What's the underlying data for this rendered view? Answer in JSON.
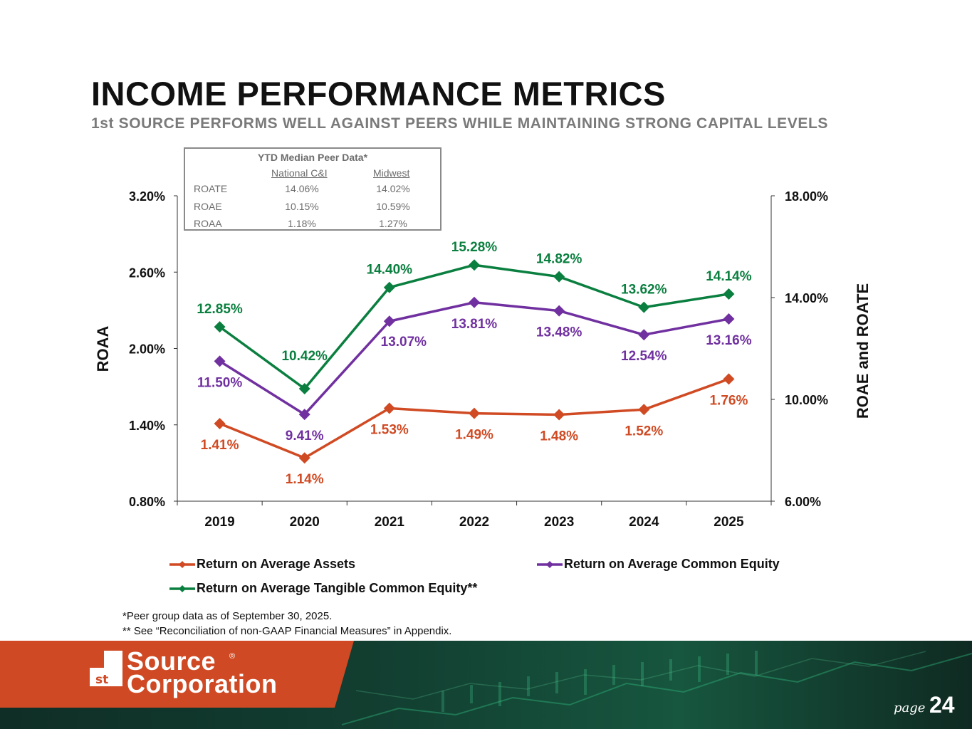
{
  "title": "INCOME PERFORMANCE METRICS",
  "subtitle": "1st SOURCE PERFORMS WELL AGAINST PEERS WHILE MAINTAINING STRONG CAPITAL LEVELS",
  "peer_table": {
    "title": "YTD Median Peer Data*",
    "columns": [
      "National C&I",
      "Midwest"
    ],
    "rows": [
      {
        "label": "ROATE",
        "values": [
          "14.06%",
          "14.02%"
        ]
      },
      {
        "label": "ROAE",
        "values": [
          "10.15%",
          "10.59%"
        ]
      },
      {
        "label": "ROAA",
        "values": [
          "1.18%",
          "1.27%"
        ]
      }
    ]
  },
  "chart_data": {
    "type": "line",
    "categories": [
      "2019",
      "2020",
      "2021",
      "2022",
      "2023",
      "2024",
      "2025"
    ],
    "left_axis": {
      "label": "ROAA",
      "ylim": [
        0.8,
        3.2
      ],
      "ticks": [
        "3.20%",
        "2.60%",
        "2.00%",
        "1.40%",
        "0.80%"
      ],
      "tick_values": [
        3.2,
        2.6,
        2.0,
        1.4,
        0.8
      ]
    },
    "right_axis": {
      "label": "ROAE and ROATE",
      "ylim": [
        6.0,
        18.0
      ],
      "ticks": [
        "18.00%",
        "14.00%",
        "10.00%",
        "6.00%"
      ],
      "tick_values": [
        18.0,
        14.0,
        10.0,
        6.0
      ]
    },
    "series": [
      {
        "name": "Return on Average Assets",
        "axis": "left",
        "color": "#d04a23",
        "values": [
          1.41,
          1.14,
          1.53,
          1.49,
          1.48,
          1.52,
          1.76
        ],
        "labels": [
          "1.41%",
          "1.14%",
          "1.53%",
          "1.49%",
          "1.48%",
          "1.52%",
          "1.76%"
        ]
      },
      {
        "name": "Return on Average Common Equity",
        "axis": "right",
        "color": "#7030a0",
        "values": [
          11.5,
          9.41,
          13.07,
          13.81,
          13.48,
          12.54,
          13.16
        ],
        "labels": [
          "11.50%",
          "9.41%",
          "13.07%",
          "13.81%",
          "13.48%",
          "12.54%",
          "13.16%"
        ]
      },
      {
        "name": "Return on Average Tangible Common Equity**",
        "axis": "right",
        "color": "#0a7f3f",
        "values": [
          12.85,
          10.42,
          14.4,
          15.28,
          14.82,
          13.62,
          14.14
        ],
        "labels": [
          "12.85%",
          "10.42%",
          "14.40%",
          "15.28%",
          "14.82%",
          "13.62%",
          "14.14%"
        ]
      }
    ]
  },
  "footnotes": [
    "*Peer group data as of September 30, 2025.",
    "** See “Reconciliation of non-GAAP Financial Measures” in Appendix."
  ],
  "logo": {
    "mark": "1st",
    "line1": "Source",
    "line2": "Corporation"
  },
  "page": {
    "label": "page",
    "number": "24"
  },
  "colors": {
    "footer_orange": "#cf4a24",
    "footer_green": "#123f31"
  }
}
